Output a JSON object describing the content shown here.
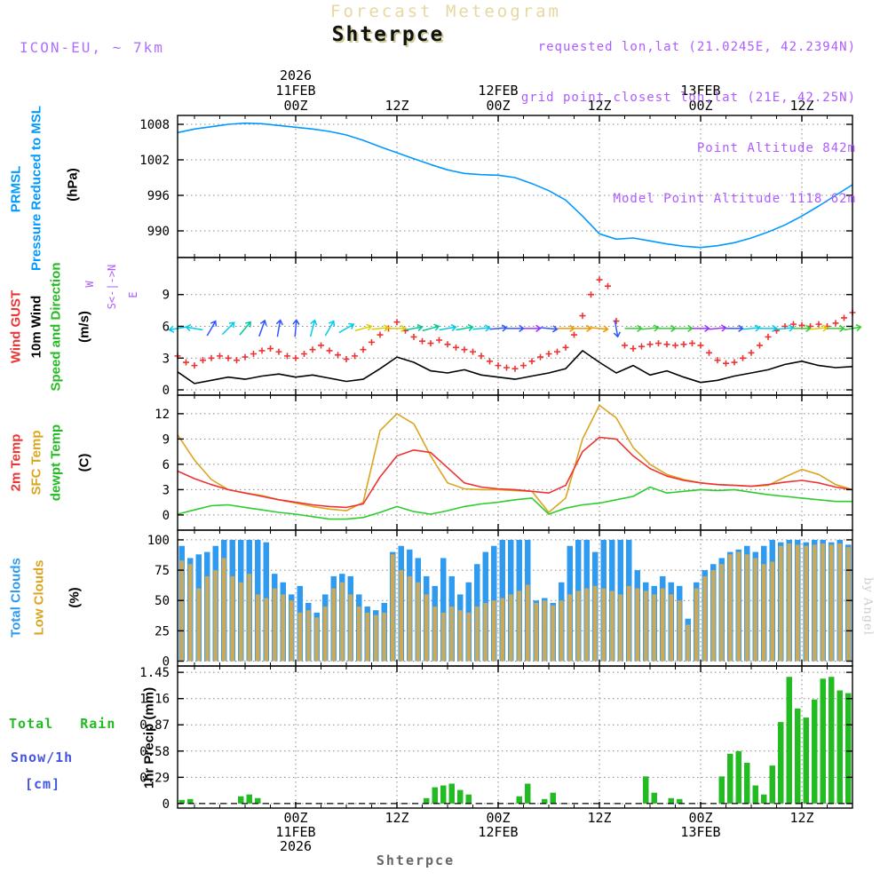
{
  "header": {
    "banner": "Forecast Meteogram",
    "title": "Shterpce",
    "model": "ICON-EU, ~ 7km",
    "meta_lines": [
      "requested lon,lat (21.0245E, 42.2394N)",
      "grid point closest lon,lat (21E, 42.25N)",
      "Point Altitude 842m",
      "Model Point Altitude 1118.62m"
    ]
  },
  "watermark": "by Angel",
  "footer": {
    "station": "Shterpce"
  },
  "axis_labels": {
    "prmsl": "PRMSL",
    "pressure_long": "Pressure Reduced to MSL",
    "hpa": "(hPa)",
    "wind_gust": "Wind GUST",
    "wind_10m": "10m Wind",
    "speed_dir": "Speed and Direction",
    "ms": "(m/s)",
    "temp_2m": "2m Temp",
    "temp_sfc": "SFC Temp",
    "temp_dewpt": "dewpt Temp",
    "c": "(C)",
    "total_clouds": "Total Clouds",
    "low_clouds": "Low Clouds",
    "pct": "(%)",
    "total_rain": "Total   Rain",
    "snow_1h": "Snow/1h",
    "cm": "[cm]",
    "precip_1hr": "1hr Precip (mm)"
  },
  "compass": {
    "w": "W",
    "axis": "S<-|->N",
    "e": "E"
  },
  "colors": {
    "pressure": "#0099FF",
    "gust": "#EE3333",
    "wind": "#000000",
    "temp2m": "#EE3333",
    "sfc": "#DAA520",
    "dewpt": "#2ECC2E",
    "total_clouds": "#2E9BF0",
    "low_clouds": "#C9A95C",
    "precip": "#22BB22",
    "purple": "#AE5CFF",
    "banner_tan": "#E7D7A0",
    "grid": "#888888"
  },
  "x_axis": {
    "hours_span": 80,
    "ticks": [
      {
        "h": 14,
        "time": "00Z",
        "date": "11FEB",
        "year": "2026"
      },
      {
        "h": 26,
        "time": "12Z"
      },
      {
        "h": 38,
        "time": "00Z",
        "date": "12FEB"
      },
      {
        "h": 50,
        "time": "12Z"
      },
      {
        "h": 62,
        "time": "00Z",
        "date": "13FEB"
      },
      {
        "h": 74,
        "time": "12Z"
      }
    ]
  },
  "chart_data": [
    {
      "id": "pressure",
      "type": "line",
      "title": "PRMSL Pressure Reduced to MSL",
      "ylabel": "(hPa)",
      "ylim": [
        985.5,
        1009.5
      ],
      "yticks": [
        990,
        996,
        1002,
        1008
      ],
      "x_step_hours": 2,
      "series": [
        {
          "name": "PRMSL (hPa)",
          "color": "#0099FF",
          "values": [
            1006.6,
            1007.2,
            1007.6,
            1008,
            1008.2,
            1008.1,
            1007.8,
            1007.5,
            1007.2,
            1006.8,
            1006.2,
            1005.3,
            1004.2,
            1003.2,
            1002.2,
            1001.2,
            1000.3,
            999.7,
            999.5,
            999.4,
            999,
            998,
            996.8,
            995.2,
            992.5,
            989.5,
            988.6,
            988.8,
            988.3,
            987.8,
            987.4,
            987.2,
            987.5,
            988,
            988.8,
            989.8,
            991,
            992.5,
            994.2,
            996,
            997.8
          ]
        }
      ]
    },
    {
      "id": "wind",
      "type": "line",
      "title": "Wind GUST / 10m Wind Speed and Direction",
      "ylabel": "(m/s)",
      "ylim": [
        -0.5,
        12.5
      ],
      "yticks": [
        0,
        3,
        6,
        9
      ],
      "arrow_y": 5.8,
      "series": [
        {
          "name": "Wind GUST",
          "color": "#EE3333",
          "marker": "plus",
          "x_step_hours": 1,
          "values": [
            3.2,
            2.6,
            2.3,
            2.8,
            3,
            3.2,
            3,
            2.8,
            3.1,
            3.4,
            3.7,
            3.9,
            3.6,
            3.2,
            3,
            3.4,
            3.8,
            4.2,
            3.7,
            3.3,
            2.9,
            3.2,
            3.8,
            4.5,
            5.2,
            5.8,
            6.4,
            5.6,
            5,
            4.6,
            4.4,
            4.7,
            4.3,
            4,
            3.8,
            3.6,
            3.2,
            2.7,
            2.3,
            2.1,
            2,
            2.3,
            2.7,
            3.1,
            3.4,
            3.6,
            4,
            5.2,
            7,
            9,
            10.4,
            9.8,
            6.5,
            4.2,
            3.9,
            4.1,
            4.3,
            4.4,
            4.3,
            4.2,
            4.3,
            4.4,
            4.2,
            3.5,
            2.8,
            2.5,
            2.6,
            3,
            3.5,
            4.2,
            5,
            5.6,
            6,
            6.2,
            6.1,
            6,
            6.2,
            6,
            6.3,
            6.8,
            7.3
          ]
        },
        {
          "name": "10m Wind Speed",
          "color": "#000000",
          "x_step_hours": 2,
          "values": [
            1.7,
            0.6,
            0.9,
            1.2,
            1,
            1.3,
            1.5,
            1.2,
            1.4,
            1.1,
            0.8,
            1,
            2,
            3.1,
            2.6,
            1.8,
            1.6,
            1.9,
            1.4,
            1.2,
            1,
            1.3,
            1.6,
            2,
            3.7,
            2.6,
            1.6,
            2.3,
            1.4,
            1.8,
            1.2,
            0.7,
            0.9,
            1.3,
            1.6,
            1.9,
            2.4,
            2.7,
            2.3,
            2.1,
            2.2
          ]
        }
      ],
      "arrows": [
        {
          "h": 0,
          "d": 190,
          "c": "#00CCEE"
        },
        {
          "h": 2,
          "d": 170,
          "c": "#00CCEE"
        },
        {
          "h": 4,
          "d": 60,
          "c": "#3355FF"
        },
        {
          "h": 6,
          "d": 45,
          "c": "#00CCEE"
        },
        {
          "h": 8,
          "d": 50,
          "c": "#00C896"
        },
        {
          "h": 10,
          "d": 70,
          "c": "#3355FF"
        },
        {
          "h": 12,
          "d": 80,
          "c": "#3355FF"
        },
        {
          "h": 14,
          "d": 85,
          "c": "#3355FF"
        },
        {
          "h": 16,
          "d": 75,
          "c": "#00CCEE"
        },
        {
          "h": 18,
          "d": 60,
          "c": "#00CCEE"
        },
        {
          "h": 20,
          "d": 30,
          "c": "#00CCEE"
        },
        {
          "h": 22,
          "d": 15,
          "c": "#DDCC00"
        },
        {
          "h": 24,
          "d": 5,
          "c": "#DDCC00"
        },
        {
          "h": 26,
          "d": 0,
          "c": "#DDCC00"
        },
        {
          "h": 28,
          "d": 10,
          "c": "#00C896"
        },
        {
          "h": 30,
          "d": 15,
          "c": "#00C896"
        },
        {
          "h": 32,
          "d": 10,
          "c": "#00CCEE"
        },
        {
          "h": 34,
          "d": 10,
          "c": "#00C896"
        },
        {
          "h": 36,
          "d": 5,
          "c": "#00CCEE"
        },
        {
          "h": 38,
          "d": 5,
          "c": "#3355FF"
        },
        {
          "h": 40,
          "d": 0,
          "c": "#3355FF"
        },
        {
          "h": 42,
          "d": 0,
          "c": "#9933FF"
        },
        {
          "h": 44,
          "d": -5,
          "c": "#3355FF"
        },
        {
          "h": 46,
          "d": 0,
          "c": "#EE9900"
        },
        {
          "h": 48,
          "d": 0,
          "c": "#EE9900"
        },
        {
          "h": 50,
          "d": -5,
          "c": "#EE9900"
        },
        {
          "h": 52,
          "d": -80,
          "c": "#3355FF"
        },
        {
          "h": 54,
          "d": 0,
          "c": "#33CC33"
        },
        {
          "h": 56,
          "d": 5,
          "c": "#33CC33"
        },
        {
          "h": 58,
          "d": 0,
          "c": "#33CC33"
        },
        {
          "h": 60,
          "d": 0,
          "c": "#33CC33"
        },
        {
          "h": 62,
          "d": 0,
          "c": "#9933FF"
        },
        {
          "h": 64,
          "d": 5,
          "c": "#9933FF"
        },
        {
          "h": 66,
          "d": 0,
          "c": "#3355FF"
        },
        {
          "h": 68,
          "d": 5,
          "c": "#00CCEE"
        },
        {
          "h": 70,
          "d": 0,
          "c": "#00CCEE"
        },
        {
          "h": 72,
          "d": 5,
          "c": "#00CCEE"
        },
        {
          "h": 74,
          "d": 0,
          "c": "#33CC33"
        },
        {
          "h": 76,
          "d": 5,
          "c": "#DDCC00"
        },
        {
          "h": 78,
          "d": 0,
          "c": "#33CC33"
        },
        {
          "h": 80,
          "d": 10,
          "c": "#33CC33"
        }
      ]
    },
    {
      "id": "temperature",
      "type": "line",
      "title": "2m Temp / SFC Temp / dewpt Temp",
      "ylabel": "(C)",
      "ylim": [
        -1.8,
        14.2
      ],
      "yticks": [
        0,
        3,
        6,
        9,
        12
      ],
      "x_step_hours": 2,
      "series": [
        {
          "name": "SFC Temp",
          "color": "#DAA520",
          "values": [
            9.5,
            6.5,
            4.2,
            3,
            2.6,
            2.3,
            1.8,
            1.4,
            1,
            0.7,
            0.5,
            1.5,
            10,
            12,
            10.8,
            7,
            3.8,
            3.1,
            3,
            3,
            2.9,
            2.8,
            0.3,
            2,
            9,
            13,
            11.5,
            8,
            6,
            4.8,
            4.2,
            3.8,
            3.6,
            3.5,
            3.4,
            3.5,
            4.5,
            5.4,
            4.8,
            3.6,
            3
          ]
        },
        {
          "name": "2m Temp",
          "color": "#EE3333",
          "values": [
            5.2,
            4.3,
            3.6,
            3,
            2.6,
            2.2,
            1.8,
            1.5,
            1.2,
            1,
            0.9,
            1.3,
            4.5,
            7,
            7.7,
            7.4,
            5.6,
            3.8,
            3.3,
            3.1,
            3,
            2.8,
            2.6,
            3.5,
            7.5,
            9.2,
            9,
            7,
            5.5,
            4.6,
            4.1,
            3.8,
            3.6,
            3.5,
            3.4,
            3.6,
            3.9,
            4.1,
            3.8,
            3.3,
            3
          ]
        },
        {
          "name": "dewpt Temp",
          "color": "#2ECC2E",
          "values": [
            0.1,
            0.6,
            1.1,
            1.2,
            0.9,
            0.6,
            0.3,
            0.1,
            -0.2,
            -0.5,
            -0.5,
            -0.3,
            0.3,
            1,
            0.4,
            0.1,
            0.5,
            1,
            1.3,
            1.5,
            1.8,
            2,
            0.1,
            0.8,
            1.2,
            1.4,
            1.8,
            2.2,
            3.3,
            2.6,
            2.8,
            3,
            2.9,
            3,
            2.7,
            2.4,
            2.2,
            2,
            1.8,
            1.6,
            1.6
          ]
        }
      ]
    },
    {
      "id": "clouds",
      "type": "bar",
      "title": "Total Clouds / Low Clouds",
      "ylabel": "(%)",
      "ylim": [
        -4,
        108
      ],
      "yticks": [
        0,
        25,
        50,
        75,
        100
      ],
      "x_step_hours": 1,
      "series": [
        {
          "name": "Total Clouds",
          "color": "#2E9BF0",
          "values": [
            95,
            85,
            88,
            90,
            95,
            100,
            100,
            100,
            100,
            100,
            98,
            72,
            65,
            55,
            62,
            48,
            40,
            55,
            70,
            72,
            70,
            55,
            45,
            42,
            48,
            90,
            95,
            92,
            85,
            70,
            62,
            85,
            70,
            55,
            65,
            80,
            90,
            95,
            100,
            100,
            100,
            100,
            50,
            52,
            48,
            65,
            95,
            100,
            100,
            90,
            100,
            100,
            100,
            100,
            75,
            65,
            62,
            70,
            65,
            62,
            35,
            65,
            75,
            80,
            85,
            90,
            92,
            95,
            90,
            95,
            100,
            98,
            100,
            100,
            98,
            100,
            100,
            98,
            100,
            96
          ]
        },
        {
          "name": "Low Clouds",
          "color": "#C9A95C",
          "values": [
            83,
            80,
            60,
            70,
            75,
            85,
            70,
            65,
            72,
            55,
            52,
            60,
            55,
            50,
            40,
            42,
            36,
            45,
            60,
            65,
            55,
            45,
            40,
            38,
            40,
            88,
            75,
            70,
            65,
            55,
            45,
            40,
            45,
            42,
            40,
            45,
            48,
            50,
            52,
            55,
            58,
            63,
            48,
            50,
            46,
            50,
            55,
            58,
            60,
            62,
            60,
            58,
            55,
            62,
            60,
            58,
            55,
            60,
            55,
            50,
            30,
            60,
            70,
            75,
            80,
            88,
            90,
            88,
            85,
            80,
            82,
            95,
            97,
            96,
            95,
            96,
            97,
            96,
            97,
            94
          ]
        }
      ]
    },
    {
      "id": "precip",
      "type": "bar",
      "title": "Total Rain / Snow per 1h",
      "ylabel": "1hr Precip (mm)",
      "ylim": [
        -0.05,
        1.52
      ],
      "yticks": [
        0,
        0.29,
        0.58,
        0.87,
        1.16,
        1.45
      ],
      "ytick_labels": [
        "0",
        "0.29",
        "0.58",
        "0.87",
        "1.16",
        "1.45"
      ],
      "zero_dashed": true,
      "x_step_hours": 1,
      "series": [
        {
          "name": "1hr Precip (mm)",
          "color": "#22BB22",
          "values": [
            0.04,
            0.05,
            0,
            0,
            0,
            0,
            0,
            0.08,
            0.1,
            0.06,
            0,
            0,
            0,
            0,
            0,
            0,
            0,
            0,
            0,
            0,
            0,
            0,
            0,
            0,
            0,
            0,
            0,
            0,
            0,
            0.06,
            0.18,
            0.2,
            0.22,
            0.15,
            0.1,
            0,
            0,
            0,
            0,
            0,
            0.08,
            0.22,
            0,
            0.05,
            0.12,
            0,
            0,
            0,
            0,
            0,
            0,
            0,
            0,
            0,
            0,
            0.3,
            0.12,
            0,
            0.06,
            0.05,
            0,
            0,
            0,
            0,
            0.3,
            0.55,
            0.58,
            0.45,
            0.2,
            0.1,
            0.42,
            0.9,
            1.4,
            1.05,
            0.95,
            1.15,
            1.38,
            1.4,
            1.25,
            1.22
          ]
        }
      ]
    }
  ]
}
